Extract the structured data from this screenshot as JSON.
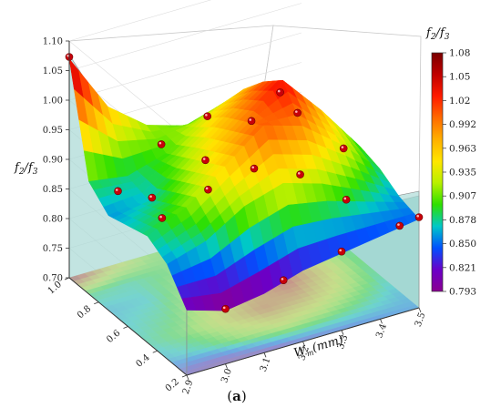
{
  "chart_data": {
    "type": "surface3d",
    "caption": {
      "open": "(",
      "letter": "a",
      "close": ")"
    },
    "axes": {
      "z": {
        "label_main": "f",
        "label_sub1": "2",
        "label_slash": "/",
        "label_main2": "f",
        "label_sub2": "3",
        "ticks": [
          "0.70",
          "0.75",
          "0.80",
          "0.85",
          "0.90",
          "0.95",
          "1.00",
          "1.05",
          "1.10"
        ],
        "range": [
          0.7,
          1.1
        ]
      },
      "x": {
        "label_main": "W",
        "label_sub": "m",
        "label_unit": "(mm)",
        "ticks": [
          "2.9",
          "3.0",
          "3.1",
          "3.2",
          "3.3",
          "3.4",
          "3.5"
        ],
        "range": [
          2.9,
          3.5
        ]
      },
      "y": {
        "ticks": [
          "0.2",
          "0.4",
          "0.6",
          "0.8",
          "1.0"
        ],
        "range": [
          0.2,
          1.0
        ]
      }
    },
    "colorbar": {
      "title_main": "f",
      "title_sub1": "2",
      "title_slash": "/",
      "title_main2": "f",
      "title_sub2": "3",
      "ticks": [
        "1.08",
        "1.05",
        "1.02",
        "0.992",
        "0.963",
        "0.935",
        "0.907",
        "0.878",
        "0.850",
        "0.821",
        "0.793"
      ],
      "colors": [
        "#7a0000",
        "#c00000",
        "#ff1a00",
        "#ff6a00",
        "#ffb000",
        "#ffe600",
        "#b8f000",
        "#2ee000",
        "#00c8c8",
        "#0050ff",
        "#6a00c8",
        "#8a0090"
      ]
    },
    "grid": true,
    "sample_points": {
      "x_grid": [
        2.9,
        3.0,
        3.1,
        3.2,
        3.3,
        3.4,
        3.5
      ],
      "y_grid": [
        0.2,
        0.33,
        0.47,
        0.6,
        0.73,
        0.87,
        1.0
      ],
      "z_surface": [
        [
          0.81,
          0.79,
          0.8,
          0.82,
          0.83,
          0.84,
          0.85
        ],
        [
          0.86,
          0.88,
          0.92,
          0.94,
          0.92,
          0.89,
          0.86
        ],
        [
          0.88,
          0.91,
          0.96,
          1.01,
          0.99,
          0.94,
          0.88
        ],
        [
          0.87,
          0.89,
          0.94,
          0.99,
          1.04,
          0.97,
          0.89
        ],
        [
          0.86,
          0.87,
          0.92,
          0.97,
          1.01,
          0.95,
          0.88
        ],
        [
          0.89,
          0.88,
          0.9,
          0.94,
          0.97,
          0.93,
          0.87
        ],
        [
          1.07,
          0.97,
          0.92,
          0.9,
          0.92,
          0.9,
          0.87
        ]
      ]
    }
  }
}
